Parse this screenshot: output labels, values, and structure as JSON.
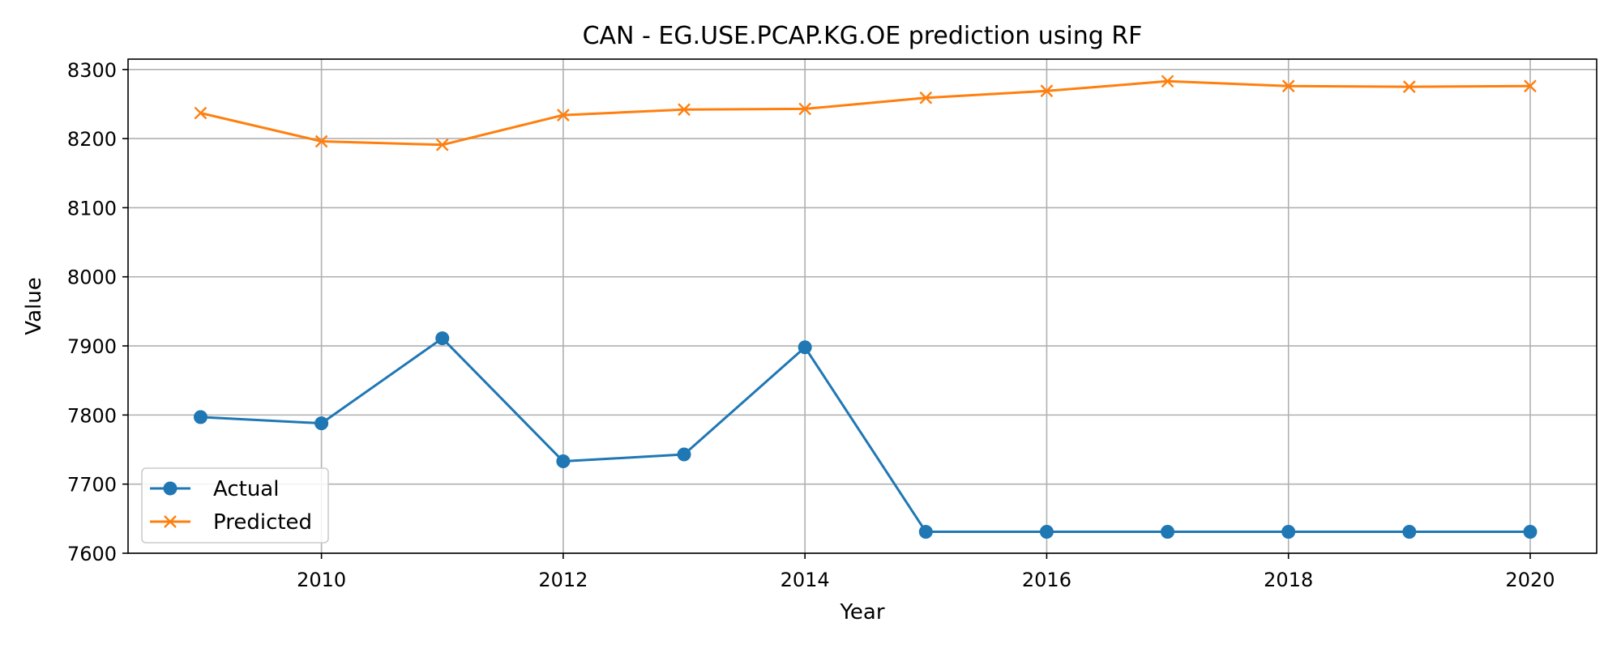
{
  "chart_data": {
    "type": "line",
    "title": "CAN - EG.USE.PCAP.KG.OE prediction using RF",
    "xlabel": "Year",
    "ylabel": "Value",
    "xlim": [
      2008.4,
      2020.55
    ],
    "ylim": [
      7600,
      8315
    ],
    "xticks": [
      2010,
      2012,
      2014,
      2016,
      2018,
      2020
    ],
    "yticks": [
      7600,
      7700,
      7800,
      7900,
      8000,
      8100,
      8200,
      8300
    ],
    "grid": true,
    "legend_position": "lower-left",
    "x": [
      2009,
      2010,
      2011,
      2012,
      2013,
      2014,
      2015,
      2016,
      2017,
      2018,
      2019,
      2020
    ],
    "series": [
      {
        "name": "Actual",
        "color": "#1f77b4",
        "marker": "circle",
        "values": [
          7797,
          7788,
          7911,
          7733,
          7743,
          7898,
          7631,
          7631,
          7631,
          7631,
          7631,
          7631
        ]
      },
      {
        "name": "Predicted",
        "color": "#ff7f0e",
        "marker": "x",
        "values": [
          8237,
          8196,
          8191,
          8234,
          8242,
          8243,
          8259,
          8269,
          8283,
          8276,
          8275,
          8276
        ]
      }
    ]
  }
}
